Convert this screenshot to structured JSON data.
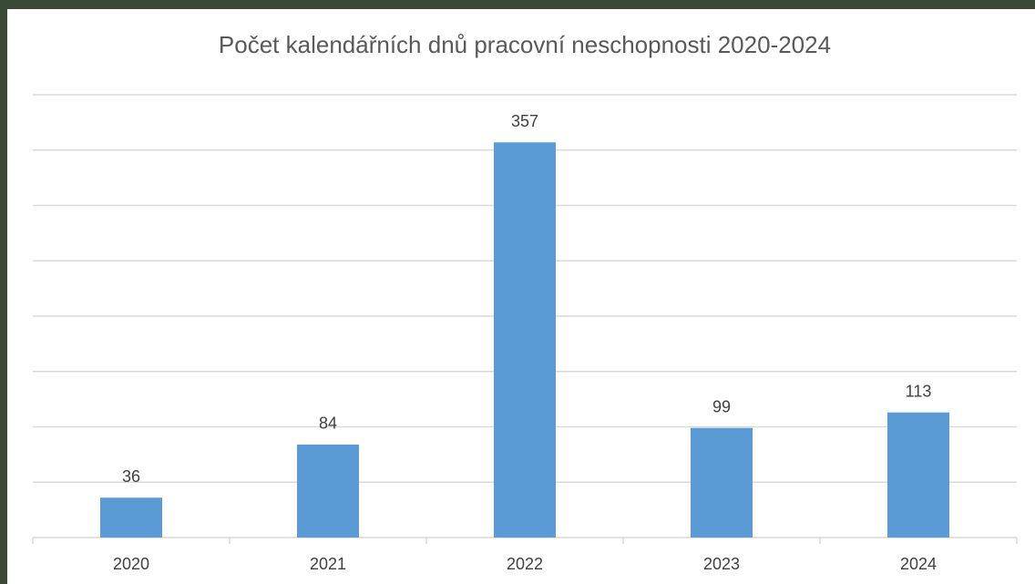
{
  "chart_data": {
    "type": "bar",
    "title": "Počet kalendářních dnů pracovní neschopnosti 2020-2024",
    "categories": [
      "2020",
      "2021",
      "2022",
      "2023",
      "2024"
    ],
    "values": [
      36,
      84,
      357,
      99,
      113
    ],
    "color": "#5b9bd5",
    "ylim": [
      0,
      400
    ],
    "yticks": [
      0,
      50,
      100,
      150,
      200,
      250,
      300,
      350,
      400
    ],
    "grid": true
  }
}
